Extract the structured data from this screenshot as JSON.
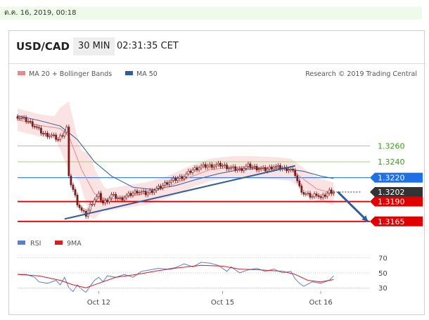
{
  "date_bar": {
    "text": "ต.ค. 16, 2019, 00:18"
  },
  "header": {
    "pair": "USD/CAD",
    "timeframe": "30 MIN",
    "time": "02:31:35 CET"
  },
  "legend": {
    "ma20": "MA 20 + Bollinger Bands",
    "ma50": "MA 50",
    "credit": "Research © 2019 Trading Central",
    "rsi": "RSI",
    "rsi_ma": "9MA"
  },
  "colors": {
    "candle": "#7a1a1a",
    "ma20": "#e88a8a",
    "ma50": "#2e5d9a",
    "bollinger_fill": "#fbdada",
    "resistance": "#9fd07a",
    "support": "#e00000",
    "pivot": "#1f6fe5",
    "current": "#333333",
    "trendline": "#2e5d9a",
    "arrow": "#2e5d9a",
    "rsi": "#5b7fd6",
    "rsi_ma": "#d42020"
  },
  "chart_data": [
    {
      "type": "candlestick",
      "title": "USD/CAD 30 MIN",
      "price_range": [
        1.3148,
        1.3325
      ],
      "x_ticks": [
        {
          "label": "Oct 12",
          "bar": 38
        },
        {
          "label": "Oct 15",
          "bar": 96
        },
        {
          "label": "Oct 16",
          "bar": 142
        }
      ],
      "bars_total": 165,
      "last_bar": 148,
      "levels": [
        {
          "label": "1.3260",
          "value": 1.326,
          "kind": "resistance"
        },
        {
          "label": "1.3240",
          "value": 1.324,
          "kind": "resistance"
        },
        {
          "label": "1.3220",
          "value": 1.322,
          "kind": "pivot"
        },
        {
          "label": "1.3202",
          "value": 1.3202,
          "kind": "current"
        },
        {
          "label": "1.3190",
          "value": 1.319,
          "kind": "support"
        },
        {
          "label": "1.3165",
          "value": 1.3165,
          "kind": "support"
        }
      ],
      "trendlines": [
        {
          "from": [
            22,
            1.3168
          ],
          "to": [
            130,
            1.3235
          ]
        }
      ],
      "arrow": {
        "from": [
          150,
          1.3202
        ],
        "to": [
          164,
          1.3165
        ]
      },
      "close_path": [
        [
          0,
          1.3297
        ],
        [
          5,
          1.3291
        ],
        [
          8,
          1.3285
        ],
        [
          12,
          1.3275
        ],
        [
          16,
          1.3273
        ],
        [
          19,
          1.3268
        ],
        [
          22,
          1.3278
        ],
        [
          23,
          1.3283
        ],
        [
          24,
          1.322
        ],
        [
          26,
          1.3205
        ],
        [
          28,
          1.3188
        ],
        [
          30,
          1.3178
        ],
        [
          32,
          1.3173
        ],
        [
          34,
          1.3185
        ],
        [
          36,
          1.3193
        ],
        [
          38,
          1.3198
        ],
        [
          40,
          1.3188
        ],
        [
          42,
          1.3192
        ],
        [
          44,
          1.3198
        ],
        [
          48,
          1.3193
        ],
        [
          52,
          1.3198
        ],
        [
          56,
          1.3203
        ],
        [
          60,
          1.32
        ],
        [
          66,
          1.3207
        ],
        [
          70,
          1.3214
        ],
        [
          74,
          1.3218
        ],
        [
          78,
          1.3222
        ],
        [
          82,
          1.323
        ],
        [
          86,
          1.3234
        ],
        [
          90,
          1.3235
        ],
        [
          95,
          1.3236
        ],
        [
          100,
          1.3232
        ],
        [
          104,
          1.323
        ],
        [
          108,
          1.3235
        ],
        [
          112,
          1.3232
        ],
        [
          116,
          1.323
        ],
        [
          120,
          1.3234
        ],
        [
          124,
          1.3232
        ],
        [
          128,
          1.323
        ],
        [
          130,
          1.3224
        ],
        [
          132,
          1.3208
        ],
        [
          134,
          1.32
        ],
        [
          136,
          1.3198
        ],
        [
          138,
          1.3196
        ],
        [
          140,
          1.32
        ],
        [
          142,
          1.3194
        ],
        [
          144,
          1.3198
        ],
        [
          146,
          1.3203
        ],
        [
          148,
          1.3202
        ]
      ],
      "ma20_path": [
        [
          0,
          1.3293
        ],
        [
          10,
          1.3286
        ],
        [
          20,
          1.3282
        ],
        [
          24,
          1.3272
        ],
        [
          30,
          1.323
        ],
        [
          36,
          1.32
        ],
        [
          42,
          1.3192
        ],
        [
          50,
          1.3196
        ],
        [
          60,
          1.32
        ],
        [
          70,
          1.3208
        ],
        [
          80,
          1.322
        ],
        [
          90,
          1.323
        ],
        [
          100,
          1.3233
        ],
        [
          110,
          1.3233
        ],
        [
          120,
          1.3232
        ],
        [
          128,
          1.323
        ],
        [
          134,
          1.3218
        ],
        [
          140,
          1.3206
        ],
        [
          148,
          1.32
        ]
      ],
      "ma50_path": [
        [
          0,
          1.3298
        ],
        [
          10,
          1.3292
        ],
        [
          20,
          1.3285
        ],
        [
          28,
          1.3268
        ],
        [
          36,
          1.324
        ],
        [
          44,
          1.3222
        ],
        [
          54,
          1.3208
        ],
        [
          64,
          1.3205
        ],
        [
          74,
          1.321
        ],
        [
          84,
          1.3218
        ],
        [
          94,
          1.3225
        ],
        [
          104,
          1.323
        ],
        [
          114,
          1.3232
        ],
        [
          124,
          1.3232
        ],
        [
          134,
          1.3228
        ],
        [
          142,
          1.3222
        ],
        [
          148,
          1.3219
        ]
      ],
      "bollinger": {
        "upper_offset": 0.0014,
        "lower_offset": 0.0014,
        "expand": [
          [
            24,
            0.0044
          ],
          [
            34,
            0.004
          ],
          [
            48,
            0.0008
          ],
          [
            132,
            0.0006
          ],
          [
            140,
            0.0016
          ]
        ]
      }
    },
    {
      "type": "line",
      "title": "RSI",
      "y_range": [
        18,
        80
      ],
      "y_ticks": [
        {
          "label": "70",
          "value": 70
        },
        {
          "label": "50",
          "value": 50
        },
        {
          "label": "30",
          "value": 30
        }
      ],
      "series": [
        {
          "name": "RSI",
          "points": [
            [
              0,
              48
            ],
            [
              4,
              48
            ],
            [
              8,
              44
            ],
            [
              10,
              38
            ],
            [
              14,
              36
            ],
            [
              18,
              40
            ],
            [
              20,
              34
            ],
            [
              22,
              44
            ],
            [
              24,
              30
            ],
            [
              26,
              25
            ],
            [
              28,
              34
            ],
            [
              30,
              28
            ],
            [
              32,
              24
            ],
            [
              34,
              32
            ],
            [
              36,
              40
            ],
            [
              38,
              44
            ],
            [
              40,
              38
            ],
            [
              42,
              46
            ],
            [
              46,
              44
            ],
            [
              50,
              48
            ],
            [
              54,
              44
            ],
            [
              58,
              52
            ],
            [
              62,
              54
            ],
            [
              66,
              56
            ],
            [
              70,
              55
            ],
            [
              74,
              57
            ],
            [
              78,
              62
            ],
            [
              82,
              58
            ],
            [
              86,
              64
            ],
            [
              90,
              63
            ],
            [
              94,
              60
            ],
            [
              98,
              52
            ],
            [
              100,
              58
            ],
            [
              104,
              50
            ],
            [
              108,
              54
            ],
            [
              112,
              56
            ],
            [
              116,
              52
            ],
            [
              120,
              55
            ],
            [
              124,
              50
            ],
            [
              128,
              52
            ],
            [
              130,
              42
            ],
            [
              132,
              36
            ],
            [
              134,
              32
            ],
            [
              138,
              38
            ],
            [
              142,
              36
            ],
            [
              146,
              40
            ],
            [
              148,
              46
            ]
          ]
        },
        {
          "name": "9MA",
          "points": [
            [
              0,
              48
            ],
            [
              10,
              46
            ],
            [
              20,
              40
            ],
            [
              26,
              34
            ],
            [
              32,
              30
            ],
            [
              38,
              36
            ],
            [
              46,
              44
            ],
            [
              56,
              48
            ],
            [
              66,
              53
            ],
            [
              76,
              57
            ],
            [
              86,
              60
            ],
            [
              96,
              59
            ],
            [
              104,
              55
            ],
            [
              114,
              54
            ],
            [
              124,
              52
            ],
            [
              130,
              48
            ],
            [
              136,
              40
            ],
            [
              142,
              38
            ],
            [
              148,
              41
            ]
          ]
        }
      ]
    }
  ]
}
